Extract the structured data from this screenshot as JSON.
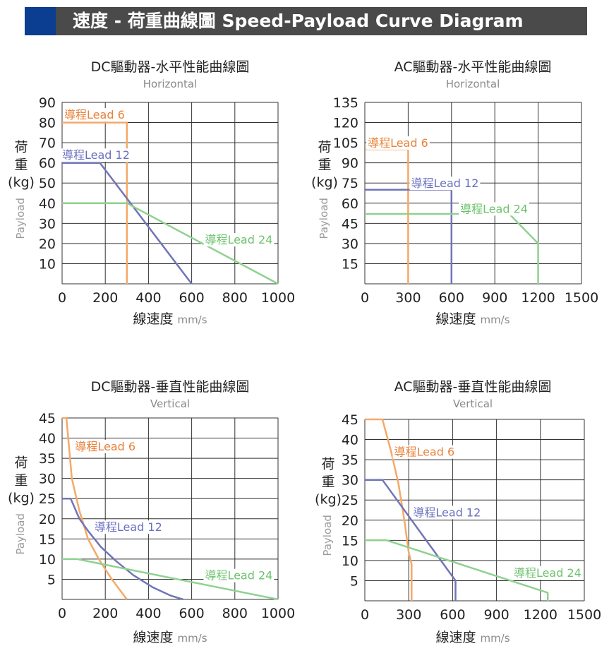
{
  "header": {
    "title": "速度 - 荷重曲線圖 Speed-Payload Curve Diagram"
  },
  "colors": {
    "lead6": "#f5a968",
    "lead12": "#7075b8",
    "lead24": "#8fd18f",
    "lead6_label": "#e8823a",
    "lead12_label": "#6a70c0",
    "lead24_label": "#6cc36c",
    "grid": "#333333",
    "accent": "#0b3d91",
    "header_bg": "#4a4a4a"
  },
  "chart_data": [
    {
      "type": "line",
      "title": "DC驅動器-水平性能曲線圖",
      "subtitle": "Horizontal",
      "xlabel": "線速度",
      "xunit": "mm/s",
      "ylabel": [
        "荷",
        "重",
        "(kg)"
      ],
      "ylabel_en": "Payload",
      "xlim": [
        0,
        1000
      ],
      "ylim": [
        0,
        90
      ],
      "x_ticks": [
        0,
        200,
        400,
        600,
        800,
        1000
      ],
      "x_tick_labels": [
        "0",
        "200",
        "400",
        "600",
        "800",
        "1000"
      ],
      "y_ticks": [
        10,
        20,
        30,
        40,
        50,
        60,
        70,
        80,
        90
      ],
      "y_tick_labels": [
        "10",
        "20",
        "30",
        "40",
        "50",
        "60",
        "70",
        "80",
        "90"
      ],
      "series": [
        {
          "name": "導程Lead 6",
          "key": "lead6",
          "x": [
            0,
            300,
            300
          ],
          "y": [
            80,
            80,
            0
          ],
          "label_at": [
            10,
            84
          ],
          "label_anchor": "start"
        },
        {
          "name": "導程Lead 12",
          "key": "lead12",
          "x": [
            0,
            175,
            600
          ],
          "y": [
            60,
            60,
            0
          ],
          "label_at": [
            0,
            64
          ],
          "label_anchor": "start"
        },
        {
          "name": "導程Lead 24",
          "key": "lead24",
          "x": [
            0,
            300,
            1000
          ],
          "y": [
            40,
            40,
            0
          ],
          "label_at": [
            975,
            22
          ],
          "label_anchor": "end"
        }
      ]
    },
    {
      "type": "line",
      "title": "AC驅動器-水平性能曲線圖",
      "subtitle": "Horizontal",
      "xlabel": "線速度",
      "xunit": "mm/s",
      "ylabel": [
        "荷",
        "重",
        "(kg)"
      ],
      "ylabel_en": "Payload",
      "xlim": [
        0,
        1500
      ],
      "ylim": [
        0,
        135
      ],
      "x_ticks": [
        0,
        300,
        600,
        900,
        1200,
        1500
      ],
      "x_tick_labels": [
        "0",
        "300",
        "600",
        "900",
        "1200",
        "1500"
      ],
      "y_ticks": [
        15,
        30,
        45,
        60,
        75,
        90,
        105,
        120,
        135
      ],
      "y_tick_labels": [
        "15",
        "30",
        "45",
        "60",
        "75",
        "90",
        "105",
        "120",
        "135"
      ],
      "series": [
        {
          "name": "導程Lead 6",
          "key": "lead6",
          "x": [
            0,
            300,
            300
          ],
          "y": [
            100,
            100,
            0
          ],
          "label_at": [
            20,
            105
          ],
          "label_anchor": "start"
        },
        {
          "name": "導程Lead 12",
          "key": "lead12",
          "x": [
            0,
            600,
            600
          ],
          "y": [
            70,
            70,
            0
          ],
          "label_at": [
            320,
            75
          ],
          "label_anchor": "start"
        },
        {
          "name": "導程Lead 24",
          "key": "lead24",
          "x": [
            0,
            1000,
            1200,
            1200
          ],
          "y": [
            52,
            52,
            30,
            0
          ],
          "label_at": [
            660,
            56
          ],
          "label_anchor": "start"
        }
      ]
    },
    {
      "type": "line",
      "title": "DC驅動器-垂直性能曲線圖",
      "subtitle": "Vertical",
      "xlabel": "線速度",
      "xunit": "mm/s",
      "ylabel": [
        "荷",
        "重",
        "(kg)"
      ],
      "ylabel_en": "Payload",
      "xlim": [
        0,
        1000
      ],
      "ylim": [
        0,
        45
      ],
      "x_ticks": [
        0,
        200,
        400,
        600,
        800,
        1000
      ],
      "x_tick_labels": [
        "0",
        "200",
        "400",
        "600",
        "800",
        "1000"
      ],
      "y_ticks": [
        5,
        10,
        15,
        20,
        25,
        30,
        35,
        40,
        45
      ],
      "y_tick_labels": [
        "5",
        "10",
        "15",
        "20",
        "25",
        "30",
        "35",
        "40",
        "45"
      ],
      "series": [
        {
          "name": "導程Lead 6",
          "key": "lead6",
          "x": [
            0,
            20,
            45,
            80,
            120,
            170,
            230,
            300
          ],
          "y": [
            45,
            45,
            30,
            22,
            15,
            10,
            5,
            0
          ],
          "label_at": [
            60,
            38
          ],
          "label_anchor": "start"
        },
        {
          "name": "導程Lead 12",
          "key": "lead12",
          "x": [
            0,
            40,
            80,
            120,
            180,
            250,
            330,
            420,
            500,
            560
          ],
          "y": [
            25,
            25,
            20,
            17,
            13,
            9.5,
            6,
            3,
            1,
            0
          ],
          "label_at": [
            150,
            18
          ],
          "label_anchor": "start"
        },
        {
          "name": "導程Lead 24",
          "key": "lead24",
          "x": [
            0,
            70,
            1000
          ],
          "y": [
            10,
            10,
            0
          ],
          "label_at": [
            975,
            6
          ],
          "label_anchor": "end"
        }
      ]
    },
    {
      "type": "line",
      "title": "AC驅動器-垂直性能曲線圖",
      "subtitle": "Vertical",
      "xlabel": "線速度",
      "xunit": "mm/s",
      "ylabel": [
        "荷",
        "重",
        "(kg)"
      ],
      "ylabel_en": "Payload",
      "xlim": [
        0,
        1500
      ],
      "ylim": [
        0,
        45
      ],
      "x_ticks": [
        0,
        300,
        600,
        900,
        1200,
        1500
      ],
      "x_tick_labels": [
        "0",
        "300",
        "600",
        "900",
        "1200",
        "1500"
      ],
      "y_ticks": [
        5,
        10,
        15,
        20,
        25,
        30,
        35,
        40,
        45
      ],
      "y_tick_labels": [
        "5",
        "10",
        "15",
        "20",
        "25",
        "30",
        "35",
        "40",
        "45"
      ],
      "series": [
        {
          "name": "導程Lead 6",
          "key": "lead6",
          "x": [
            0,
            120,
            180,
            230,
            270,
            300,
            320,
            320
          ],
          "y": [
            45,
            45,
            37,
            29,
            20,
            12,
            9,
            0
          ],
          "label_at": [
            200,
            37
          ],
          "label_anchor": "start"
        },
        {
          "name": "導程Lead 12",
          "key": "lead12",
          "x": [
            0,
            120,
            320,
            480,
            620,
            620
          ],
          "y": [
            30,
            30,
            20,
            12,
            5,
            0
          ],
          "label_at": [
            330,
            22
          ],
          "label_anchor": "start"
        },
        {
          "name": "導程Lead 24",
          "key": "lead24",
          "x": [
            0,
            150,
            1250,
            1250
          ],
          "y": [
            15,
            15,
            2,
            0
          ],
          "label_at": [
            1480,
            7
          ],
          "label_anchor": "end"
        }
      ]
    }
  ]
}
